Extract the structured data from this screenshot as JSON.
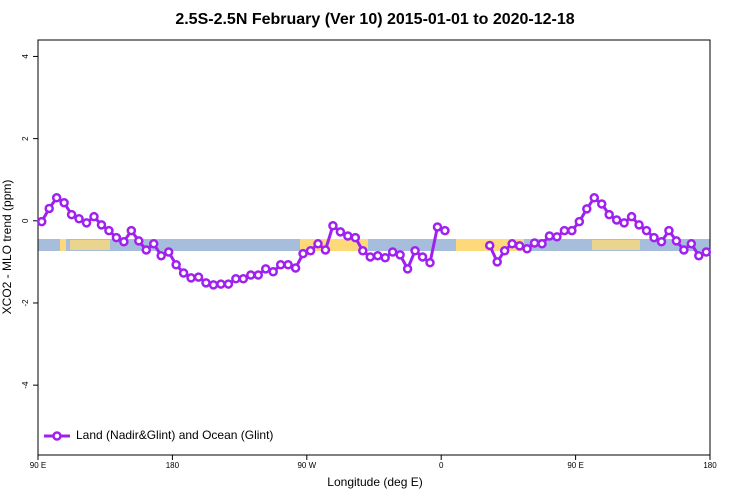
{
  "chart_data": {
    "type": "line",
    "title": "2.5S-2.5N February (Ver 10)   2015-01-01 to 2020-12-18",
    "x_label": "Longitude (deg E)",
    "y_label": "XCO2 - MLO trend (ppm)",
    "x": [
      92.5,
      97.5,
      102.5,
      107.5,
      112.5,
      117.5,
      122.5,
      127.5,
      132.5,
      137.5,
      142.5,
      147.5,
      152.5,
      157.5,
      162.5,
      167.5,
      172.5,
      177.5,
      182.5,
      187.5,
      192.5,
      197.5,
      202.5,
      207.5,
      212.5,
      217.5,
      222.5,
      227.5,
      232.5,
      237.5,
      242.5,
      247.5,
      252.5,
      257.5,
      262.5,
      267.5,
      272.5,
      277.5,
      282.5,
      287.5,
      292.5,
      297.5,
      302.5,
      307.5,
      312.5,
      317.5,
      322.5,
      327.5,
      332.5,
      337.5,
      342.5,
      347.5,
      352.5,
      357.5,
      362.5,
      367.5,
      372.5,
      377.5,
      382.5,
      387.5,
      392.5,
      397.5,
      402.5,
      407.5,
      412.5,
      417.5,
      422.5,
      427.5,
      432.5,
      437.5,
      442.5,
      447.5,
      452.5,
      457.5,
      462.5,
      467.5,
      472.5,
      477.5,
      482.5,
      487.5,
      492.5,
      497.5,
      502.5,
      507.5,
      512.5,
      517.5,
      522.5,
      527.5,
      532.5,
      537.5
    ],
    "series": [
      {
        "name": "Land (Nadir&Glint) and Ocean (Glint)",
        "color": "#a020f0",
        "values": [
          -0.02,
          0.3,
          0.56,
          0.44,
          0.15,
          0.05,
          -0.05,
          0.1,
          -0.1,
          -0.24,
          -0.41,
          -0.51,
          -0.24,
          -0.49,
          -0.71,
          -0.56,
          -0.85,
          -0.76,
          -1.07,
          -1.27,
          -1.39,
          -1.37,
          -1.51,
          -1.56,
          -1.54,
          -1.54,
          -1.41,
          -1.41,
          -1.32,
          -1.32,
          -1.17,
          -1.24,
          -1.07,
          -1.07,
          -1.15,
          -0.8,
          -0.73,
          -0.56,
          -0.71,
          -0.12,
          -0.27,
          -0.37,
          -0.41,
          -0.73,
          -0.88,
          -0.85,
          -0.9,
          -0.76,
          -0.83,
          -1.17,
          -0.73,
          -0.88,
          -1.02,
          -0.15,
          -0.24,
          null,
          null,
          null,
          null,
          null,
          -0.6,
          -1.0,
          -0.73,
          -0.56,
          -0.61,
          -0.68,
          -0.54,
          -0.56,
          -0.37,
          -0.39,
          -0.24,
          -0.24,
          -0.02,
          0.29,
          0.56,
          0.41,
          0.15,
          0.02,
          -0.05,
          0.1,
          -0.1,
          -0.24,
          -0.41,
          -0.51,
          -0.24,
          -0.49,
          -0.71,
          -0.56,
          -0.85,
          -0.76
        ]
      }
    ],
    "xlim": [
      90,
      540
    ],
    "xticks": [
      {
        "value": 90,
        "label": "90 E"
      },
      180,
      {
        "value": 270,
        "label": "90 W"
      },
      {
        "value": 360,
        "label": "0"
      },
      {
        "value": 450,
        "label": "90 E"
      },
      {
        "value": 540,
        "label": "180"
      }
    ],
    "ylim": [
      -5.7,
      4.4
    ],
    "yticks": [
      -4,
      -2,
      0,
      2,
      4
    ],
    "legend": "bottom-left",
    "grid": false
  }
}
